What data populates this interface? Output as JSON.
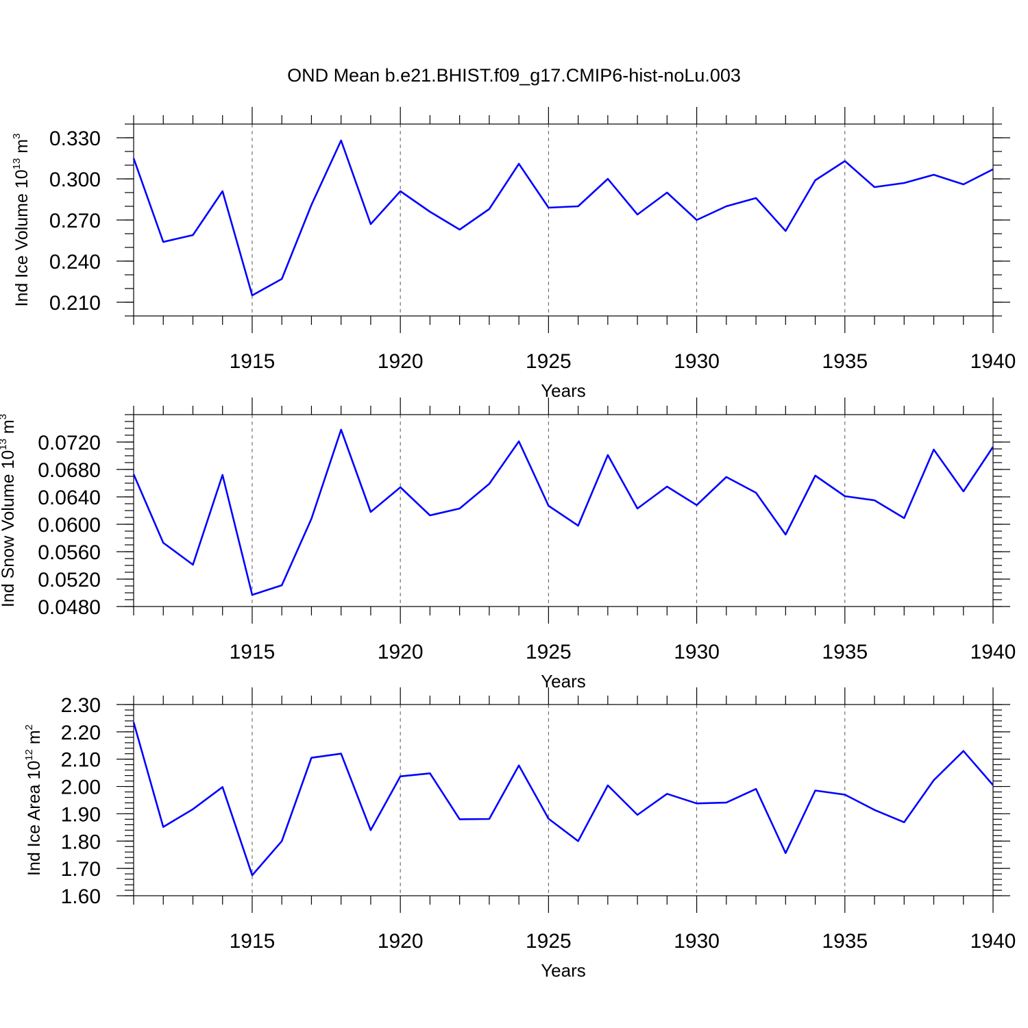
{
  "title": "OND Mean b.e21.BHIST.f09_g17.CMIP6-hist-noLu.003",
  "line_color": "#0000ff",
  "chart_data": [
    {
      "type": "line",
      "ylabel_main": "Ind Ice Volume 10",
      "ylabel_exp": "13",
      "ylabel_unit": " m",
      "ylabel_unit_exp": "3",
      "xlabel": "Years",
      "xlim": [
        1911,
        1940
      ],
      "ylim": [
        0.2,
        0.34
      ],
      "yticks": [
        0.21,
        0.24,
        0.27,
        0.3,
        0.33
      ],
      "ytick_labels": [
        "0.210",
        "0.240",
        "0.270",
        "0.300",
        "0.330"
      ],
      "yminor_step": 0.01,
      "xticks": [
        1915,
        1920,
        1925,
        1930,
        1935,
        1940
      ],
      "xtick_labels": [
        "1915",
        "1920",
        "1925",
        "1930",
        "1935",
        "1940"
      ],
      "x": [
        1911,
        1912,
        1913,
        1914,
        1915,
        1916,
        1917,
        1918,
        1919,
        1920,
        1921,
        1922,
        1923,
        1924,
        1925,
        1926,
        1927,
        1928,
        1929,
        1930,
        1931,
        1932,
        1933,
        1934,
        1935,
        1936,
        1937,
        1938,
        1939,
        1940
      ],
      "values": [
        0.315,
        0.254,
        0.259,
        0.291,
        0.215,
        0.227,
        0.281,
        0.328,
        0.267,
        0.291,
        0.276,
        0.263,
        0.278,
        0.311,
        0.279,
        0.28,
        0.3,
        0.274,
        0.29,
        0.27,
        0.28,
        0.286,
        0.262,
        0.299,
        0.313,
        0.294,
        0.297,
        0.303,
        0.296,
        0.307
      ]
    },
    {
      "type": "line",
      "ylabel_main": "Ind Snow Volume 10",
      "ylabel_exp": "13",
      "ylabel_unit": " m",
      "ylabel_unit_exp": "3",
      "xlabel": "Years",
      "xlim": [
        1911,
        1940
      ],
      "ylim": [
        0.048,
        0.076
      ],
      "yticks": [
        0.048,
        0.052,
        0.056,
        0.06,
        0.064,
        0.068,
        0.072
      ],
      "ytick_labels": [
        "0.0480",
        "0.0520",
        "0.0560",
        "0.0600",
        "0.0640",
        "0.0680",
        "0.0720"
      ],
      "yminor_step": 0.001,
      "xticks": [
        1915,
        1920,
        1925,
        1930,
        1935,
        1940
      ],
      "xtick_labels": [
        "1915",
        "1920",
        "1925",
        "1930",
        "1935",
        "1940"
      ],
      "x": [
        1911,
        1912,
        1913,
        1914,
        1915,
        1916,
        1917,
        1918,
        1919,
        1920,
        1921,
        1922,
        1923,
        1924,
        1925,
        1926,
        1927,
        1928,
        1929,
        1930,
        1931,
        1932,
        1933,
        1934,
        1935,
        1936,
        1937,
        1938,
        1939,
        1940
      ],
      "values": [
        0.0673,
        0.0573,
        0.0541,
        0.0672,
        0.0497,
        0.0511,
        0.0608,
        0.0738,
        0.0618,
        0.0654,
        0.0613,
        0.0623,
        0.0659,
        0.0721,
        0.0627,
        0.0598,
        0.0701,
        0.0623,
        0.0655,
        0.0628,
        0.0669,
        0.0646,
        0.0585,
        0.0671,
        0.0641,
        0.0635,
        0.0609,
        0.0709,
        0.0648,
        0.0713
      ]
    },
    {
      "type": "line",
      "ylabel_main": "Ind Ice Area 10",
      "ylabel_exp": "12",
      "ylabel_unit": " m",
      "ylabel_unit_exp": "2",
      "xlabel": "Years",
      "xlim": [
        1911,
        1940
      ],
      "ylim": [
        1.6,
        2.3
      ],
      "yticks": [
        1.6,
        1.7,
        1.8,
        1.9,
        2.0,
        2.1,
        2.2,
        2.3
      ],
      "ytick_labels": [
        "1.60",
        "1.70",
        "1.80",
        "1.90",
        "2.00",
        "2.10",
        "2.20",
        "2.30"
      ],
      "yminor_step": 0.02,
      "xticks": [
        1915,
        1920,
        1925,
        1930,
        1935,
        1940
      ],
      "xtick_labels": [
        "1915",
        "1920",
        "1925",
        "1930",
        "1935",
        "1940"
      ],
      "x": [
        1911,
        1912,
        1913,
        1914,
        1915,
        1916,
        1917,
        1918,
        1919,
        1920,
        1921,
        1922,
        1923,
        1924,
        1925,
        1926,
        1927,
        1928,
        1929,
        1930,
        1931,
        1932,
        1933,
        1934,
        1935,
        1936,
        1937,
        1938,
        1939,
        1940
      ],
      "values": [
        2.235,
        1.852,
        1.917,
        1.998,
        1.675,
        1.8,
        2.105,
        2.12,
        1.84,
        2.037,
        2.048,
        1.88,
        1.881,
        2.077,
        1.882,
        1.8,
        2.004,
        1.896,
        1.973,
        1.938,
        1.941,
        1.991,
        1.756,
        1.985,
        1.97,
        1.914,
        1.869,
        2.023,
        2.13,
        2.005
      ]
    }
  ]
}
